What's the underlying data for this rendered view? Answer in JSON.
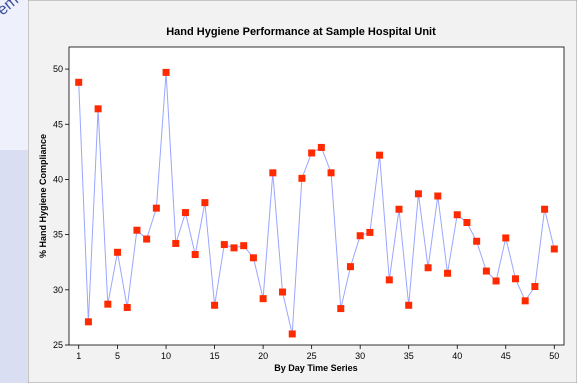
{
  "background": {
    "rotated_text": "ement"
  },
  "colors": {
    "line": "#9aa6ff",
    "marker": "#ff2a00",
    "plot_bg": "#ffffff",
    "frame_bg": "#f2f2f2"
  },
  "chart_data": {
    "type": "line",
    "title": "Hand Hygiene Performance at Sample Hospital Unit",
    "xlabel": "By Day Time Series",
    "ylabel": "% Hand Hygiene Compliance",
    "xlim": [
      0,
      51
    ],
    "ylim": [
      25,
      52
    ],
    "xticks": [
      1,
      5,
      10,
      15,
      20,
      25,
      30,
      35,
      40,
      45,
      50
    ],
    "yticks": [
      25,
      30,
      35,
      40,
      45,
      50
    ],
    "grid": false,
    "series": [
      {
        "x": [
          1,
          2,
          3,
          4,
          5,
          6,
          7,
          8,
          9,
          10,
          11,
          12,
          13,
          14,
          15,
          16,
          17,
          18,
          19,
          20,
          21,
          22,
          23,
          24,
          25,
          26,
          27,
          28,
          29,
          30,
          31,
          32,
          33,
          34,
          35,
          36,
          37,
          38,
          39,
          40,
          41,
          42,
          43,
          44,
          45,
          46,
          47,
          48,
          49,
          50
        ],
        "values": [
          48.8,
          27.1,
          46.4,
          28.7,
          33.4,
          28.4,
          35.4,
          34.6,
          37.4,
          49.7,
          34.2,
          37.0,
          33.2,
          37.9,
          28.6,
          34.1,
          33.8,
          34.0,
          32.9,
          29.2,
          40.6,
          29.8,
          26.0,
          40.1,
          42.4,
          42.9,
          40.6,
          28.3,
          32.1,
          34.9,
          35.2,
          42.2,
          30.9,
          37.3,
          28.6,
          38.7,
          32.0,
          38.5,
          31.5,
          36.8,
          36.1,
          34.4,
          31.7,
          30.8,
          34.7,
          31.0,
          29.0,
          30.3,
          37.3,
          33.7
        ]
      }
    ]
  }
}
